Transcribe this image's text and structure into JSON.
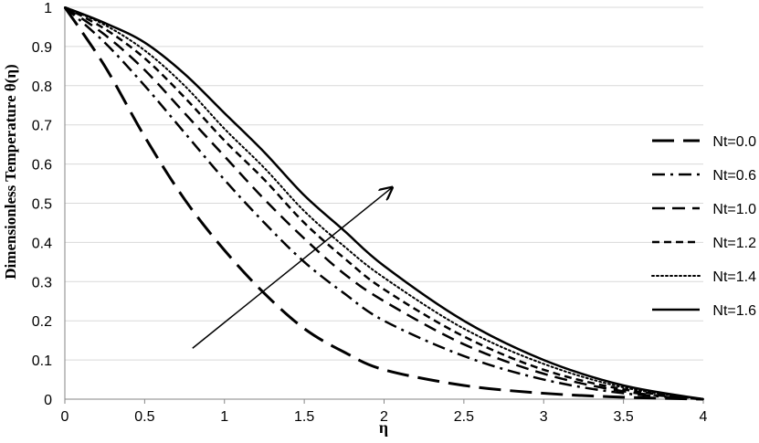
{
  "chart_data": {
    "type": "line",
    "xlabel": "η",
    "ylabel": "Dimensionless Temperature θ(η)",
    "xlim": [
      0,
      4
    ],
    "ylim": [
      0,
      1
    ],
    "xticks": [
      "0",
      "0.5",
      "1",
      "1.5",
      "2",
      "2.5",
      "3",
      "3.5",
      "4"
    ],
    "yticks": [
      "0",
      "0.1",
      "0.2",
      "0.3",
      "0.4",
      "0.5",
      "0.6",
      "0.7",
      "0.8",
      "0.9",
      "1"
    ],
    "grid": "horizontal",
    "legend_position": "right",
    "series": [
      {
        "name": "Nt=0.0",
        "style": "long-dash",
        "x": [
          0,
          0.25,
          0.5,
          0.75,
          1.0,
          1.25,
          1.5,
          1.75,
          2.0,
          2.5,
          3.0,
          3.5,
          4.0
        ],
        "y": [
          1.0,
          0.85,
          0.67,
          0.51,
          0.38,
          0.27,
          0.18,
          0.12,
          0.075,
          0.035,
          0.015,
          0.005,
          0.0
        ]
      },
      {
        "name": "Nt=0.6",
        "style": "dash-dot",
        "x": [
          0,
          0.25,
          0.5,
          0.75,
          1.0,
          1.25,
          1.5,
          1.75,
          2.0,
          2.5,
          3.0,
          3.5,
          4.0
        ],
        "y": [
          1.0,
          0.91,
          0.8,
          0.68,
          0.56,
          0.45,
          0.35,
          0.27,
          0.2,
          0.11,
          0.05,
          0.015,
          0.0
        ]
      },
      {
        "name": "Nt=1.0",
        "style": "medium-dash",
        "x": [
          0,
          0.25,
          0.5,
          0.75,
          1.0,
          1.25,
          1.5,
          1.75,
          2.0,
          2.5,
          3.0,
          3.5,
          4.0
        ],
        "y": [
          1.0,
          0.93,
          0.84,
          0.73,
          0.62,
          0.51,
          0.41,
          0.32,
          0.25,
          0.14,
          0.065,
          0.02,
          0.0
        ]
      },
      {
        "name": "Nt=1.2",
        "style": "short-dash",
        "x": [
          0,
          0.25,
          0.5,
          0.75,
          1.0,
          1.25,
          1.5,
          1.75,
          2.0,
          2.5,
          3.0,
          3.5,
          4.0
        ],
        "y": [
          1.0,
          0.945,
          0.87,
          0.77,
          0.66,
          0.56,
          0.45,
          0.36,
          0.28,
          0.16,
          0.075,
          0.025,
          0.0
        ]
      },
      {
        "name": "Nt=1.4",
        "style": "dotted",
        "x": [
          0,
          0.25,
          0.5,
          0.75,
          1.0,
          1.25,
          1.5,
          1.75,
          2.0,
          2.5,
          3.0,
          3.5,
          4.0
        ],
        "y": [
          1.0,
          0.955,
          0.89,
          0.8,
          0.69,
          0.59,
          0.48,
          0.39,
          0.31,
          0.18,
          0.09,
          0.03,
          0.0
        ]
      },
      {
        "name": "Nt=1.6",
        "style": "solid",
        "x": [
          0,
          0.25,
          0.5,
          0.75,
          1.0,
          1.25,
          1.5,
          1.75,
          2.0,
          2.5,
          3.0,
          3.5,
          4.0
        ],
        "y": [
          1.0,
          0.96,
          0.91,
          0.83,
          0.73,
          0.63,
          0.52,
          0.43,
          0.34,
          0.2,
          0.1,
          0.035,
          0.0
        ]
      }
    ],
    "annotations": [
      {
        "type": "arrow",
        "label": "increasing Nt",
        "from": [
          0.8,
          0.13
        ],
        "to": [
          2.05,
          0.54
        ]
      }
    ],
    "colors": {
      "line": "#000000",
      "grid": "#d9d9d9",
      "axis": "#868686",
      "text": "#000000"
    }
  }
}
